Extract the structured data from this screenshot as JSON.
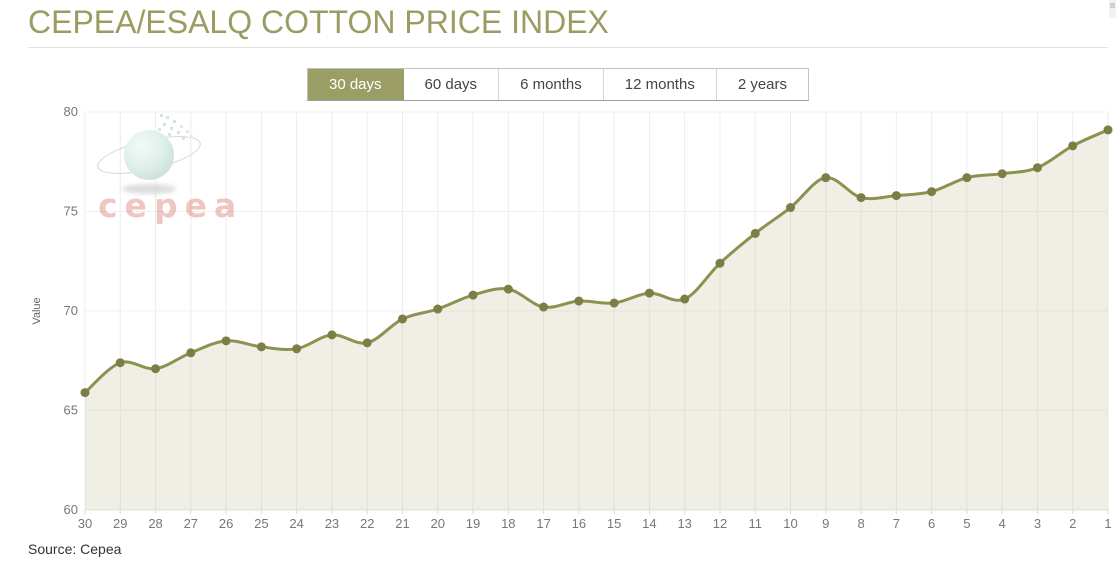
{
  "header": {
    "title": "CEPEA/ESALQ COTTON PRICE INDEX"
  },
  "tabs": [
    {
      "label": "30 days",
      "active": true
    },
    {
      "label": "60 days",
      "active": false
    },
    {
      "label": "6 months",
      "active": false
    },
    {
      "label": "12 months",
      "active": false
    },
    {
      "label": "2 years",
      "active": false
    }
  ],
  "logo": {
    "text": "cepea"
  },
  "source": {
    "label": "Source: Cepea"
  },
  "chart_data": {
    "type": "area",
    "title": "CEPEA/ESALQ COTTON PRICE INDEX",
    "xlabel": "",
    "ylabel": "Value",
    "categories": [
      "30",
      "29",
      "28",
      "27",
      "26",
      "25",
      "24",
      "23",
      "22",
      "21",
      "20",
      "19",
      "18",
      "17",
      "16",
      "15",
      "14",
      "13",
      "12",
      "11",
      "10",
      "9",
      "8",
      "7",
      "6",
      "5",
      "4",
      "3",
      "2",
      "1"
    ],
    "values": [
      65.9,
      67.4,
      67.1,
      67.9,
      68.5,
      68.2,
      68.1,
      68.8,
      68.4,
      69.6,
      70.1,
      70.8,
      71.1,
      70.2,
      70.5,
      70.4,
      70.9,
      70.6,
      72.4,
      73.9,
      75.2,
      76.7,
      75.7,
      75.8,
      76.0,
      76.7,
      76.9,
      77.2,
      78.3,
      79.1
    ],
    "ylim": [
      60,
      80
    ],
    "yticks": [
      60,
      65,
      70,
      75,
      80
    ],
    "grid": true,
    "legend_position": "none",
    "line_color": "#8e9150",
    "point_color": "#7c7f45",
    "fill_color": "rgba(197,197,164,0.28)",
    "grid_color_v": "#ececec",
    "grid_color_h": "#f0f0f0",
    "baseline_color": "#e3e3e3",
    "tick_color": "#d8d8d8",
    "axis_text_color": "#777777"
  }
}
